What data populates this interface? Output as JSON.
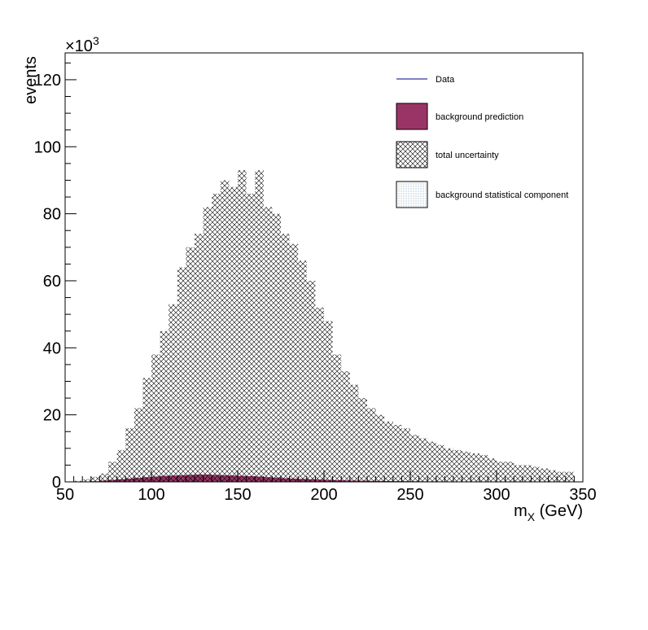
{
  "chart_data": {
    "type": "histogram",
    "x_label_main": "m",
    "x_label_sub": "X",
    "x_label_unit": " (GeV)",
    "y_label": "events",
    "y_multiplier_base": "×10",
    "y_multiplier_exp": "3",
    "xlim": [
      50,
      350
    ],
    "ylim": [
      0,
      128
    ],
    "x_ticks": [
      50,
      100,
      150,
      200,
      250,
      300,
      350
    ],
    "y_ticks": [
      0,
      20,
      40,
      60,
      80,
      100,
      120
    ],
    "bin_width": 5,
    "bin_start": 55,
    "series": [
      {
        "name": "total uncertainty",
        "values": [
          0.3,
          0.8,
          1.5,
          2.5,
          6,
          9.5,
          16,
          22,
          31,
          38,
          45,
          53,
          64,
          70,
          74,
          82,
          86,
          90,
          88,
          93,
          86,
          93,
          82,
          80,
          74,
          71,
          66,
          60,
          52,
          48,
          38,
          33,
          29,
          25,
          22,
          20,
          18,
          17,
          16,
          14,
          13,
          12,
          11,
          10,
          9.5,
          9,
          8.5,
          8,
          7,
          6,
          6,
          5,
          5,
          4.5,
          4,
          3.5,
          3,
          3
        ]
      },
      {
        "name": "background prediction",
        "values": [
          0.05,
          0.1,
          0.2,
          0.4,
          0.6,
          0.8,
          1.0,
          1.2,
          1.4,
          1.6,
          1.8,
          1.9,
          2.0,
          2.1,
          2.2,
          2.2,
          2.1,
          2.0,
          1.9,
          1.8,
          1.7,
          1.6,
          1.4,
          1.3,
          1.1,
          1.0,
          0.9,
          0.8,
          0.7,
          0.6,
          0.5,
          0.45,
          0.4,
          0.35,
          0.3,
          0.28,
          0.25,
          0.22,
          0.2,
          0.18,
          0.16,
          0.15,
          0.14,
          0.13,
          0.12,
          0.11,
          0.1,
          0.1,
          0.09,
          0.08,
          0.08,
          0.07,
          0.07,
          0.06,
          0.06,
          0.05,
          0.05,
          0.05
        ]
      }
    ],
    "legend": [
      {
        "label": "Data",
        "style": "line",
        "color": "#000080"
      },
      {
        "label": "background prediction",
        "style": "fill",
        "color": "#9b3466"
      },
      {
        "label": "total uncertainty",
        "style": "crosshatch",
        "color": "#000000"
      },
      {
        "label": "background statistical component",
        "style": "dots",
        "color": "#4a7fa8"
      }
    ],
    "legend_position": "top-right",
    "colors": {
      "background_prediction": "#9b3466",
      "data_line": "#000080",
      "hatch": "#000000",
      "stat_dots": "#4a7fa8"
    }
  }
}
